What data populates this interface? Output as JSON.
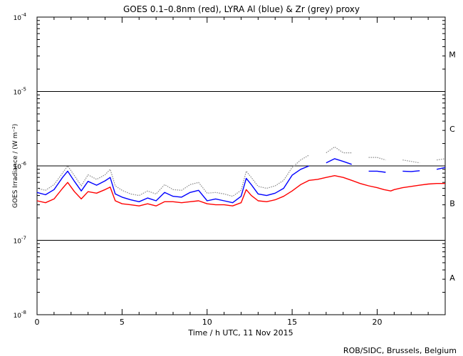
{
  "chart_data": {
    "type": "line",
    "title": "GOES 0.1–0.8nm (red), LYRA Al (blue) & Zr (grey) proxy",
    "xlabel": "Time / h UTC, 11 Nov 2015",
    "ylabel": "GOES Irradiance / (W m⁻²)",
    "xlim": [
      0,
      24
    ],
    "ylim": [
      1e-08,
      0.0001
    ],
    "yscale": "log",
    "grid": "horizontal lines at 1e-7, 1e-6, 1e-5",
    "x_ticks": [
      "0",
      "5",
      "10",
      "15",
      "20"
    ],
    "y_ticks": [
      {
        "base": "10",
        "exp": "-8"
      },
      {
        "base": "10",
        "exp": "-7"
      },
      {
        "base": "10",
        "exp": "-6"
      },
      {
        "base": "10",
        "exp": "-5"
      },
      {
        "base": "10",
        "exp": "-4"
      }
    ],
    "flare_classes": [
      "A",
      "B",
      "C",
      "M"
    ],
    "colors": {
      "goes": "#ff0000",
      "lyra_al": "#0000ff",
      "lyra_zr": "#888888"
    },
    "series": [
      {
        "name": "GOES 0.1–0.8nm",
        "color": "#ff0000",
        "x": [
          0,
          0.5,
          1.0,
          1.5,
          1.8,
          2.2,
          2.6,
          3.0,
          3.5,
          4.0,
          4.3,
          4.6,
          5.0,
          5.5,
          6.0,
          6.5,
          7.0,
          7.5,
          8.0,
          8.5,
          9.0,
          9.5,
          10.0,
          10.5,
          11.0,
          11.5,
          12.0,
          12.3,
          12.6,
          13.0,
          13.5,
          14.0,
          14.5,
          15.0,
          15.5,
          16.0,
          16.5,
          17.0,
          17.5,
          18.0,
          18.5,
          19.0,
          19.5,
          20.0,
          20.4,
          20.8,
          21.0,
          21.5,
          22.0,
          22.5,
          23.0,
          23.5,
          24.0
        ],
        "y": [
          3.4e-07,
          3.2e-07,
          3.6e-07,
          5e-07,
          6e-07,
          4.5e-07,
          3.6e-07,
          4.5e-07,
          4.3e-07,
          4.8e-07,
          5.2e-07,
          3.4e-07,
          3.1e-07,
          3e-07,
          2.9e-07,
          3.1e-07,
          2.9e-07,
          3.3e-07,
          3.3e-07,
          3.2e-07,
          3.3e-07,
          3.4e-07,
          3.1e-07,
          3e-07,
          3e-07,
          2.9e-07,
          3.2e-07,
          4.8e-07,
          4e-07,
          3.4e-07,
          3.3e-07,
          3.5e-07,
          3.9e-07,
          4.6e-07,
          5.6e-07,
          6.4e-07,
          6.6e-07,
          7e-07,
          7.4e-07,
          7e-07,
          6.4e-07,
          5.8e-07,
          5.4e-07,
          5.1e-07,
          4.8e-07,
          4.6e-07,
          4.8e-07,
          5.1e-07,
          5.3e-07,
          5.5e-07,
          5.7e-07,
          5.8e-07,
          5.8e-07
        ]
      },
      {
        "name": "LYRA Al",
        "color": "#0000ff",
        "x": [
          0,
          0.5,
          1.0,
          1.5,
          1.8,
          2.2,
          2.6,
          3.0,
          3.5,
          4.0,
          4.3,
          4.6,
          5.0,
          5.5,
          6.0,
          6.5,
          7.0,
          7.5,
          8.0,
          8.5,
          9.0,
          9.5,
          10.0,
          10.5,
          11.0,
          11.5,
          12.0,
          12.3,
          12.6,
          13.0,
          13.5,
          14.0,
          14.5,
          15.0,
          15.5,
          16.0,
          16.5,
          17.0,
          17.5,
          18.0,
          18.5,
          19.0,
          19.5,
          20.0,
          20.5,
          21.0,
          21.5,
          22.0,
          22.5,
          23.0,
          23.5,
          24.0
        ],
        "y": [
          4.4e-07,
          4.1e-07,
          4.8e-07,
          7e-07,
          8.5e-07,
          6.2e-07,
          4.6e-07,
          6.2e-07,
          5.5e-07,
          6.3e-07,
          7e-07,
          4.2e-07,
          3.8e-07,
          3.5e-07,
          3.3e-07,
          3.7e-07,
          3.4e-07,
          4.4e-07,
          3.9e-07,
          3.8e-07,
          4.4e-07,
          4.7e-07,
          3.4e-07,
          3.6e-07,
          3.4e-07,
          3.2e-07,
          3.9e-07,
          6.8e-07,
          5.6e-07,
          4.2e-07,
          4e-07,
          4.3e-07,
          5e-07,
          7.5e-07,
          9e-07,
          1e-06,
          null,
          1.1e-06,
          1.25e-06,
          1.15e-06,
          1.05e-06,
          null,
          8.5e-07,
          8.5e-07,
          8.2e-07,
          null,
          8.5e-07,
          8.4e-07,
          8.6e-07,
          null,
          9e-07,
          9.5e-07
        ]
      },
      {
        "name": "LYRA Zr",
        "color": "#888888",
        "x": [
          0,
          0.5,
          1.0,
          1.5,
          1.8,
          2.2,
          2.6,
          3.0,
          3.5,
          4.0,
          4.3,
          4.6,
          5.0,
          5.5,
          6.0,
          6.5,
          7.0,
          7.5,
          8.0,
          8.5,
          9.0,
          9.5,
          10.0,
          10.5,
          11.0,
          11.5,
          12.0,
          12.3,
          12.6,
          13.0,
          13.5,
          14.0,
          14.5,
          15.0,
          15.5,
          16.0,
          16.5,
          17.0,
          17.5,
          18.0,
          18.5,
          19.0,
          19.5,
          20.0,
          20.5,
          21.0,
          21.5,
          22.0,
          22.5,
          23.0,
          23.5,
          24.0
        ],
        "y": [
          5e-07,
          4.7e-07,
          5.6e-07,
          8e-07,
          1e-06,
          7.4e-07,
          5.4e-07,
          7.6e-07,
          6.6e-07,
          7.6e-07,
          9e-07,
          5.4e-07,
          4.7e-07,
          4.2e-07,
          4e-07,
          4.6e-07,
          4.2e-07,
          5.6e-07,
          4.8e-07,
          4.7e-07,
          5.6e-07,
          6e-07,
          4.3e-07,
          4.4e-07,
          4.2e-07,
          3.9e-07,
          4.7e-07,
          8.5e-07,
          7e-07,
          5.3e-07,
          5e-07,
          5.4e-07,
          6.4e-07,
          9.5e-07,
          1.2e-06,
          1.4e-06,
          null,
          1.5e-06,
          1.8e-06,
          1.5e-06,
          1.5e-06,
          null,
          1.3e-06,
          1.3e-06,
          1.2e-06,
          null,
          1.2e-06,
          1.15e-06,
          1.1e-06,
          null,
          1.2e-06,
          1.25e-06
        ]
      }
    ]
  },
  "footer": {
    "credit": "ROB/SIDC, Brussels, Belgium"
  }
}
